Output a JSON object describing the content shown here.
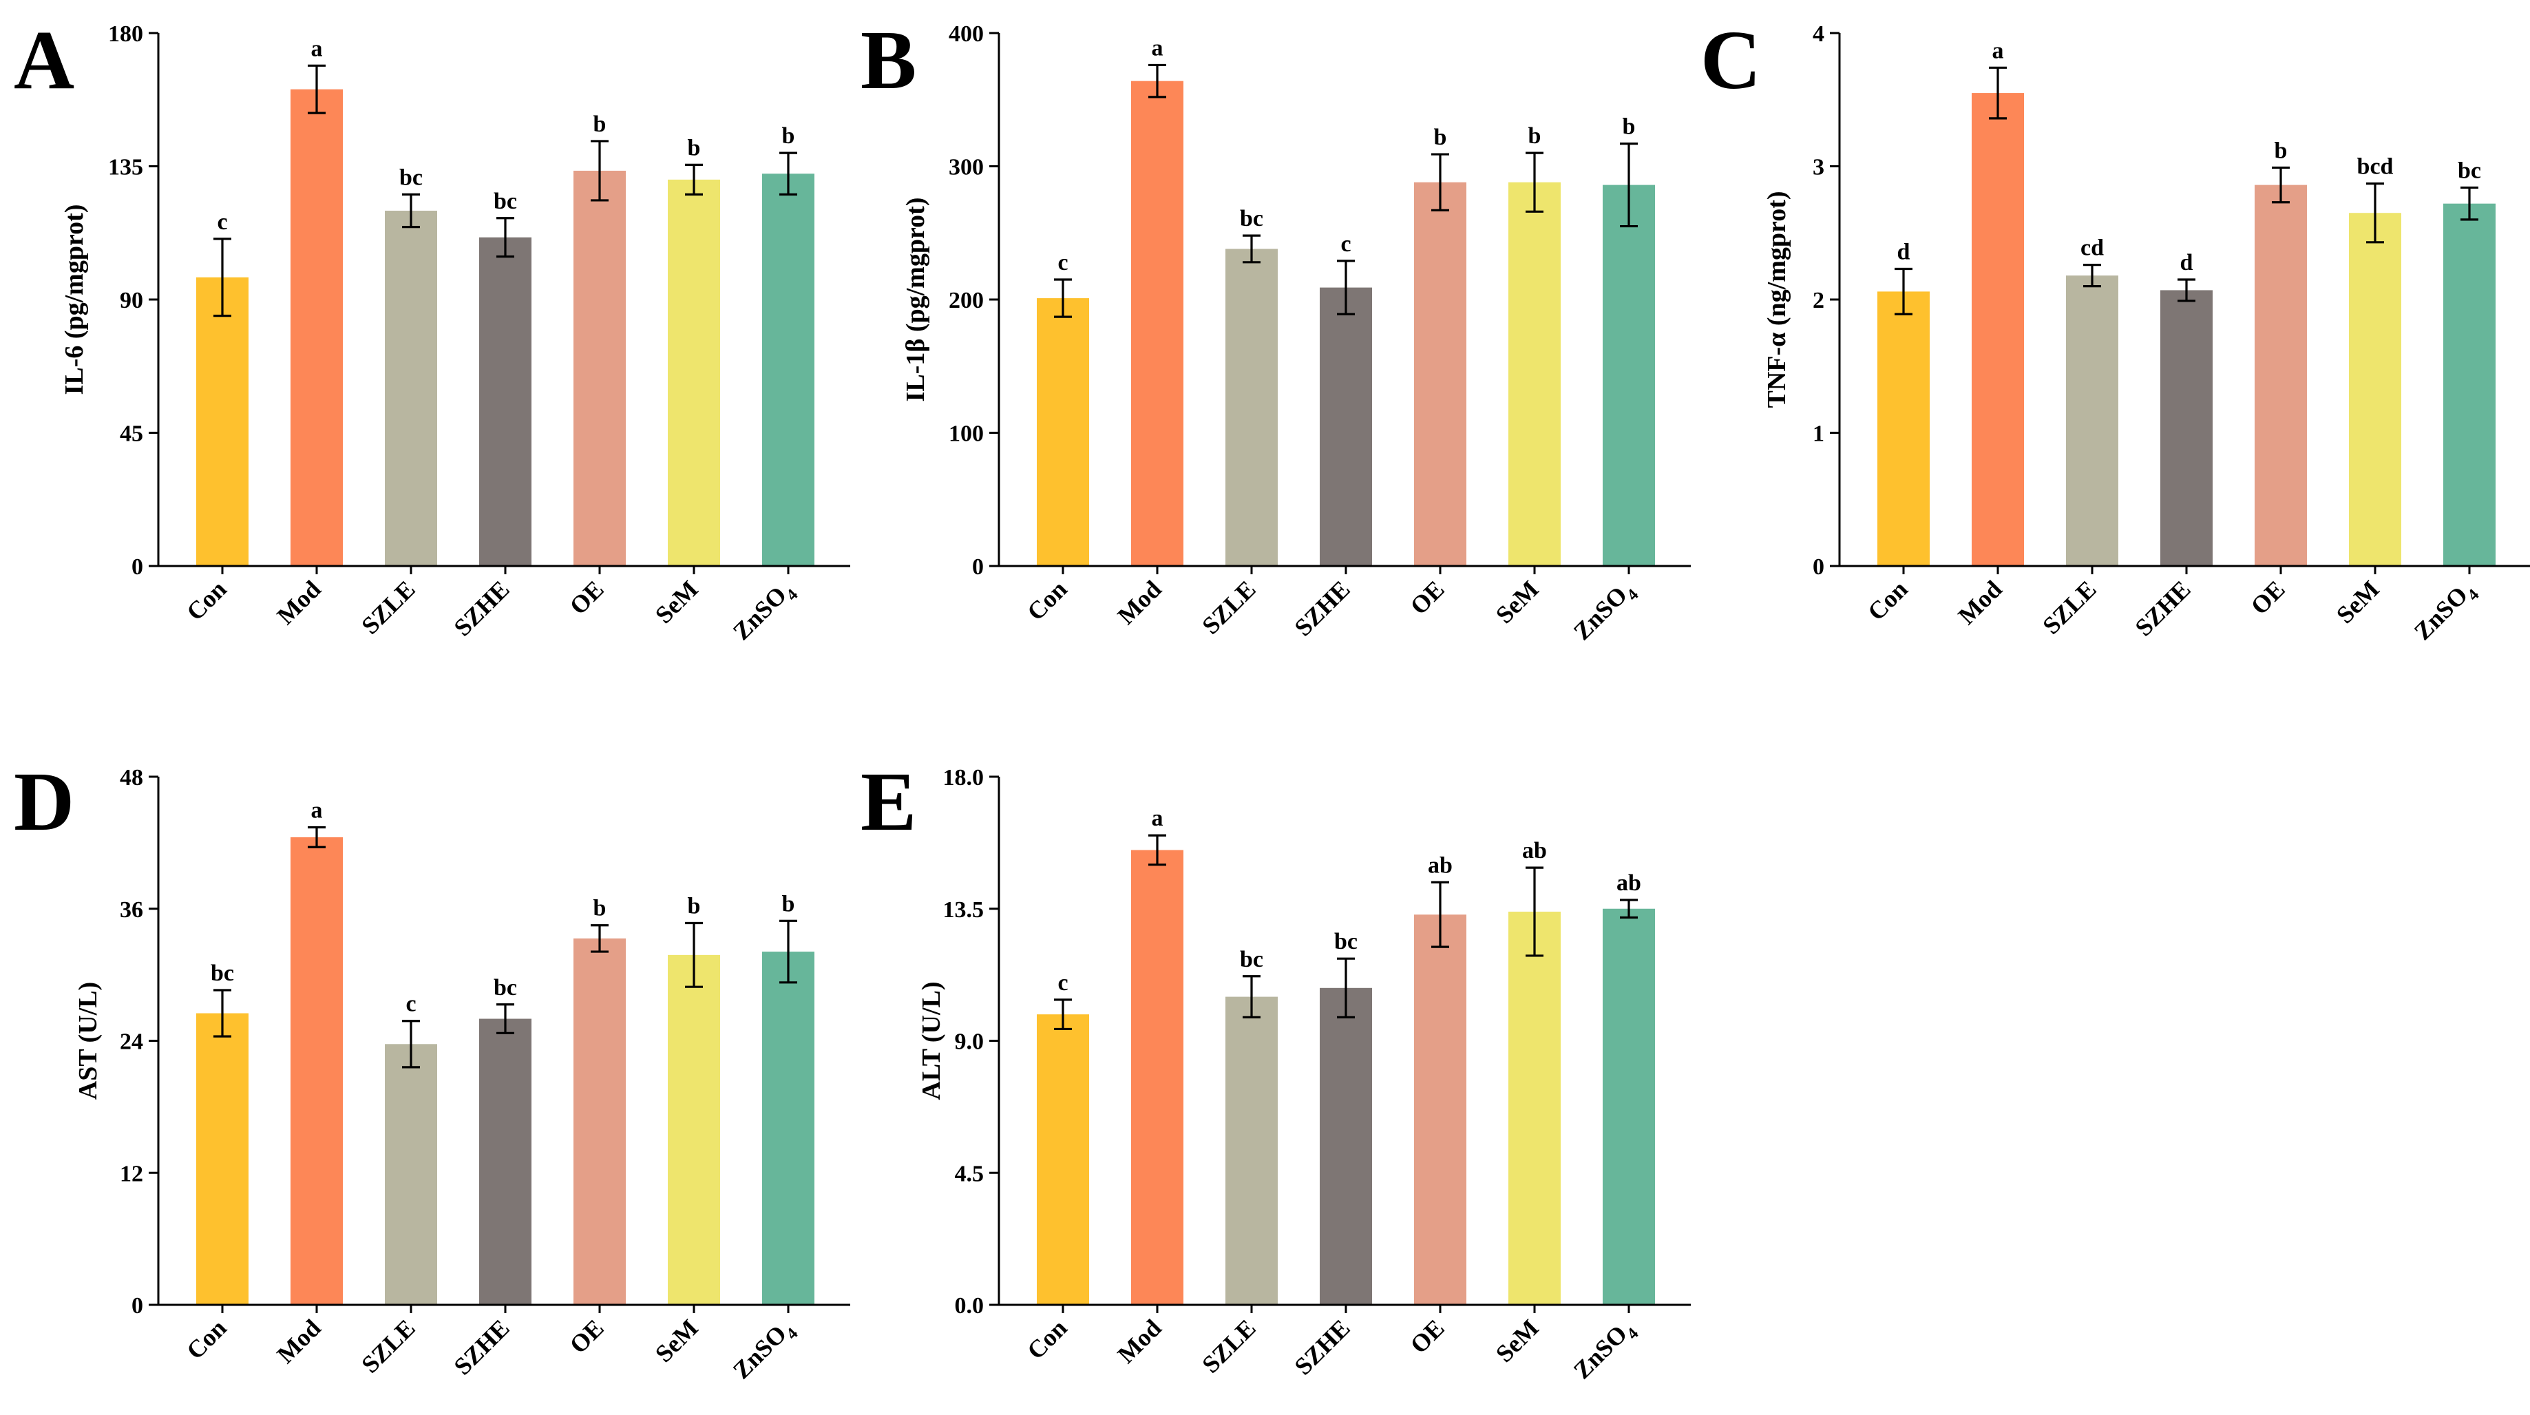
{
  "colors": [
    "#FEC12E",
    "#FD8757",
    "#B8B6A0",
    "#7E7674",
    "#E49F88",
    "#EEE56D",
    "#67B69A"
  ],
  "chart_data": [
    {
      "panel": "A",
      "type": "bar",
      "categories": [
        "Con",
        "Mod",
        "SZLE",
        "SZHE",
        "OE",
        "SeM",
        "ZnSO4"
      ],
      "values": [
        97.5,
        161.0,
        120.0,
        111.0,
        133.5,
        130.5,
        132.5
      ],
      "errors": [
        13.0,
        8.0,
        5.5,
        6.5,
        10.0,
        5.0,
        7.0
      ],
      "significance": [
        "c",
        "a",
        "bc",
        "bc",
        "b",
        "b",
        "b"
      ],
      "ylabel": "IL-6 (pg/mgprot)",
      "ylim": [
        0,
        180
      ],
      "yticks": [
        "0",
        "45",
        "90",
        "135",
        "180"
      ]
    },
    {
      "panel": "B",
      "type": "bar",
      "categories": [
        "Con",
        "Mod",
        "SZLE",
        "SZHE",
        "OE",
        "SeM",
        "ZnSO4"
      ],
      "values": [
        201,
        364,
        238,
        209,
        288,
        288,
        286
      ],
      "errors": [
        14,
        12,
        10,
        20,
        21,
        22,
        31
      ],
      "significance": [
        "c",
        "a",
        "bc",
        "c",
        "b",
        "b",
        "b"
      ],
      "ylabel": "IL-1β (pg/mgprot)",
      "ylim": [
        0,
        400
      ],
      "yticks": [
        "0",
        "100",
        "200",
        "300",
        "400"
      ]
    },
    {
      "panel": "C",
      "type": "bar",
      "categories": [
        "Con",
        "Mod",
        "SZLE",
        "SZHE",
        "OE",
        "SeM",
        "ZnSO4"
      ],
      "values": [
        2.06,
        3.55,
        2.18,
        2.07,
        2.86,
        2.65,
        2.72
      ],
      "errors": [
        0.17,
        0.19,
        0.08,
        0.08,
        0.13,
        0.22,
        0.12
      ],
      "significance": [
        "d",
        "a",
        "cd",
        "d",
        "b",
        "bcd",
        "bc"
      ],
      "ylabel": "TNF-α (ng/mgprot)",
      "ylim": [
        0,
        4
      ],
      "yticks": [
        "0",
        "1",
        "2",
        "3",
        "4"
      ]
    },
    {
      "panel": "D",
      "type": "bar",
      "categories": [
        "Con",
        "Mod",
        "SZLE",
        "SZHE",
        "OE",
        "SeM",
        "ZnSO4"
      ],
      "values": [
        26.5,
        42.5,
        23.7,
        26.0,
        33.3,
        31.8,
        32.1
      ],
      "errors": [
        2.1,
        0.9,
        2.1,
        1.3,
        1.2,
        2.9,
        2.8
      ],
      "significance": [
        "bc",
        "a",
        "c",
        "bc",
        "b",
        "b",
        "b"
      ],
      "ylabel": "AST (U/L)",
      "ylim": [
        0,
        48
      ],
      "yticks": [
        "0",
        "12",
        "24",
        "36",
        "48"
      ]
    },
    {
      "panel": "E",
      "type": "bar",
      "categories": [
        "Con",
        "Mod",
        "SZLE",
        "SZHE",
        "OE",
        "SeM",
        "ZnSO4"
      ],
      "values": [
        9.9,
        15.5,
        10.5,
        10.8,
        13.3,
        13.4,
        13.5
      ],
      "errors": [
        0.5,
        0.5,
        0.7,
        1.0,
        1.1,
        1.5,
        0.3
      ],
      "significance": [
        "c",
        "a",
        "bc",
        "bc",
        "ab",
        "ab",
        "ab"
      ],
      "ylabel": "ALT (U/L)",
      "ylim": [
        0,
        18
      ],
      "yticks": [
        "0.0",
        "4.5",
        "9.0",
        "13.5",
        "18.0"
      ]
    }
  ]
}
